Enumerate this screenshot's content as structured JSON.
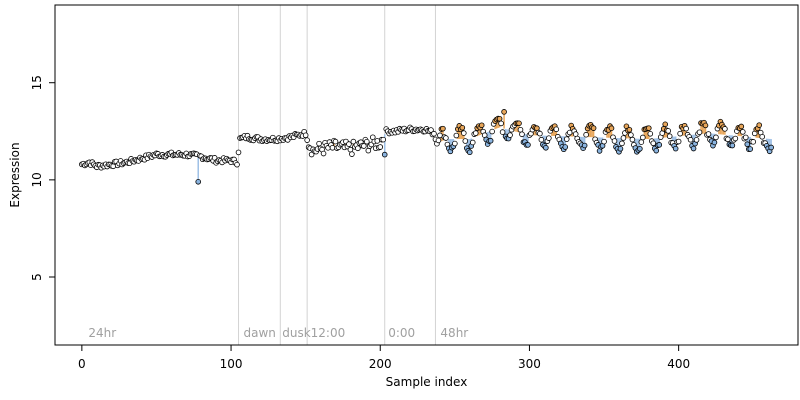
{
  "chart_data": {
    "type": "scatter",
    "xlabel": "Sample index",
    "ylabel": "Expression",
    "xlim": [
      -18,
      480
    ],
    "ylim": [
      1.5,
      19
    ],
    "x_ticks": [
      0,
      100,
      200,
      300,
      400
    ],
    "y_ticks": [
      5,
      10,
      15
    ],
    "grid": false,
    "phase_boundaries": [
      105,
      133,
      151,
      203,
      237
    ],
    "phase_labels": [
      {
        "x": 3,
        "text": "24hr"
      },
      {
        "x": 107,
        "text": "dawn"
      },
      {
        "x": 133,
        "text": "dusk"
      },
      {
        "x": 152,
        "text": "12:00"
      },
      {
        "x": 204,
        "text": "0:00"
      },
      {
        "x": 239,
        "text": "48hr"
      }
    ],
    "colors": {
      "point_edge": "#000000",
      "point_default": "#ffffff",
      "point_low": "#8ab4e0",
      "point_high": "#e8a65a",
      "stem": "#9ec0e6",
      "stem_high": "#e8a65a",
      "boundary": "#d3d3d3",
      "phase_text": "#a0a0a0"
    },
    "anchors": [
      [
        0,
        10.8
      ],
      [
        5,
        10.9
      ],
      [
        10,
        10.7
      ],
      [
        20,
        10.8
      ],
      [
        30,
        10.9
      ],
      [
        40,
        11.1
      ],
      [
        50,
        11.3
      ],
      [
        60,
        11.3
      ],
      [
        70,
        11.3
      ],
      [
        80,
        11.2
      ],
      [
        90,
        11.0
      ],
      [
        100,
        11.0
      ],
      [
        104,
        10.9
      ],
      [
        106,
        12.1
      ],
      [
        110,
        12.2
      ],
      [
        120,
        12.1
      ],
      [
        130,
        12.1
      ],
      [
        140,
        12.2
      ],
      [
        150,
        12.4
      ],
      [
        152,
        11.9
      ],
      [
        155,
        11.5
      ],
      [
        160,
        11.6
      ],
      [
        170,
        11.7
      ],
      [
        180,
        11.6
      ],
      [
        190,
        11.8
      ],
      [
        200,
        11.9
      ],
      [
        204,
        12.5
      ],
      [
        210,
        12.5
      ],
      [
        220,
        12.6
      ],
      [
        230,
        12.6
      ],
      [
        236,
        12.4
      ],
      [
        238,
        11.9
      ],
      [
        245,
        12.1
      ],
      [
        260,
        12.1
      ],
      [
        280,
        12.7
      ],
      [
        300,
        12.3
      ],
      [
        340,
        12.2
      ],
      [
        380,
        12.1
      ],
      [
        420,
        12.4
      ],
      [
        462,
        12.1
      ]
    ],
    "outliers": [
      {
        "x": 78,
        "y": 9.9
      },
      {
        "x": 203,
        "y": 11.3
      },
      {
        "x": 283,
        "y": 13.5
      }
    ],
    "oscillation": {
      "start": 238,
      "end": 462,
      "period": 12.5,
      "amplitude": 0.55
    },
    "n_points": 463
  }
}
